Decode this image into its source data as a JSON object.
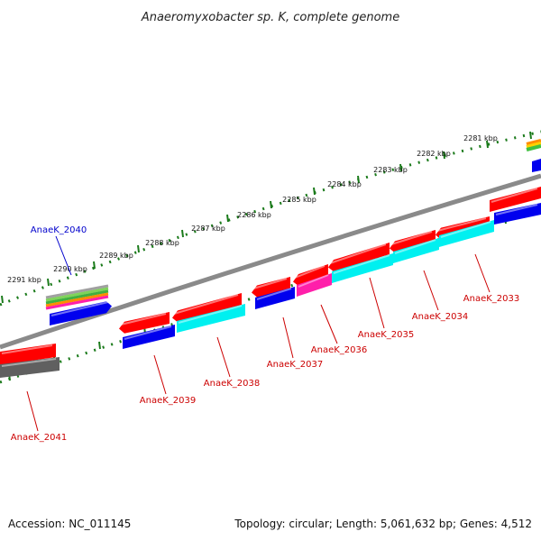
{
  "title": "Anaeromyxobacter sp. K, complete genome",
  "footer": {
    "accession": "Accession: NC_011145",
    "summary": "Topology: circular; Length: 5,061,632 bp; Genes: 4,512"
  },
  "colors": {
    "tick": "#1a7a1a",
    "backbone": "#808080",
    "red": "#ff0000",
    "blue": "#0000ee",
    "cyan": "#00f0f0",
    "magenta": "#ff1faa",
    "gray": "#606060",
    "label_red": "#cc0000",
    "label_blue": "#0000cc"
  },
  "kbp_labels": [
    "2281 kbp",
    "2282 kbp",
    "2283 kbp",
    "2284 kbp",
    "2285 kbp",
    "2286 kbp",
    "2287 kbp",
    "2288 kbp",
    "2289 kbp",
    "2290 kbp",
    "2291 kbp"
  ],
  "gene_labels": [
    "AnaeK_2033",
    "AnaeK_2034",
    "AnaeK_2035",
    "AnaeK_2036",
    "AnaeK_2037",
    "AnaeK_2038",
    "AnaeK_2039",
    "AnaeK_2040",
    "AnaeK_2041"
  ]
}
